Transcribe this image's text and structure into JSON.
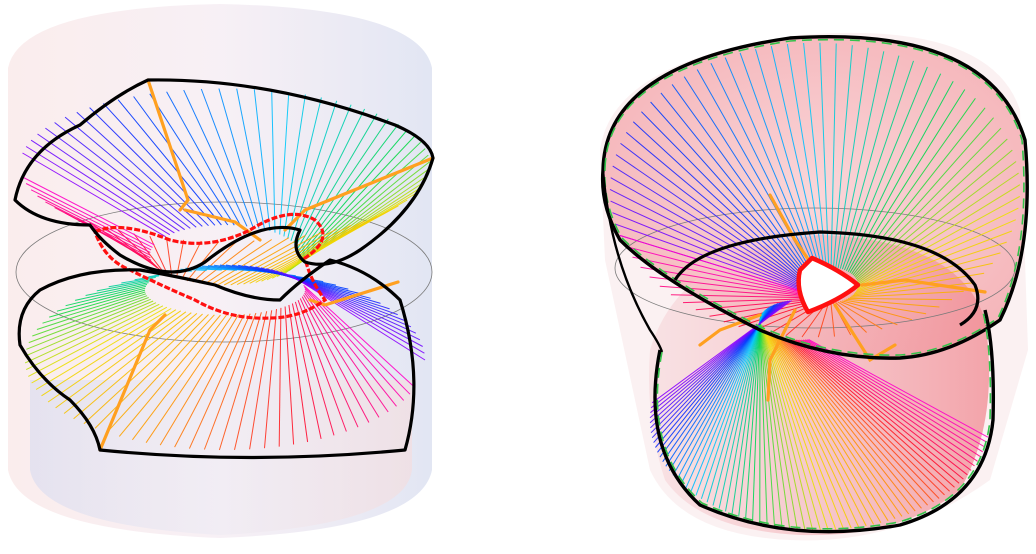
{
  "figures": [
    {
      "id": "left",
      "shape": "cylinder-twisted-surface",
      "palette": [
        "#8a00ff",
        "#0033ff",
        "#00c8ff",
        "#00d84a",
        "#f0e000",
        "#ff9a00",
        "#ff0a2a",
        "#ff00c8"
      ],
      "boundary_color": "#000000",
      "singular_curve_color": "#ff1010",
      "cone_lines_color": "#ffa020",
      "cylinder_tint_top": "#f6c9cd",
      "cylinder_tint_side": "#d4d8ec"
    },
    {
      "id": "right",
      "shape": "cylinder-tilted-ruled-surface",
      "palette": [
        "#8a00ff",
        "#0033ff",
        "#00c8ff",
        "#00d84a",
        "#f0e000",
        "#ff9a00",
        "#ff0a2a",
        "#ff00c8"
      ],
      "boundary_color": "#000000",
      "rim_color": "#33c24a",
      "singular_curve_color": "#ff1010",
      "cone_lines_color": "#ffa020",
      "cylinder_tint": "#f4aeb2"
    }
  ]
}
